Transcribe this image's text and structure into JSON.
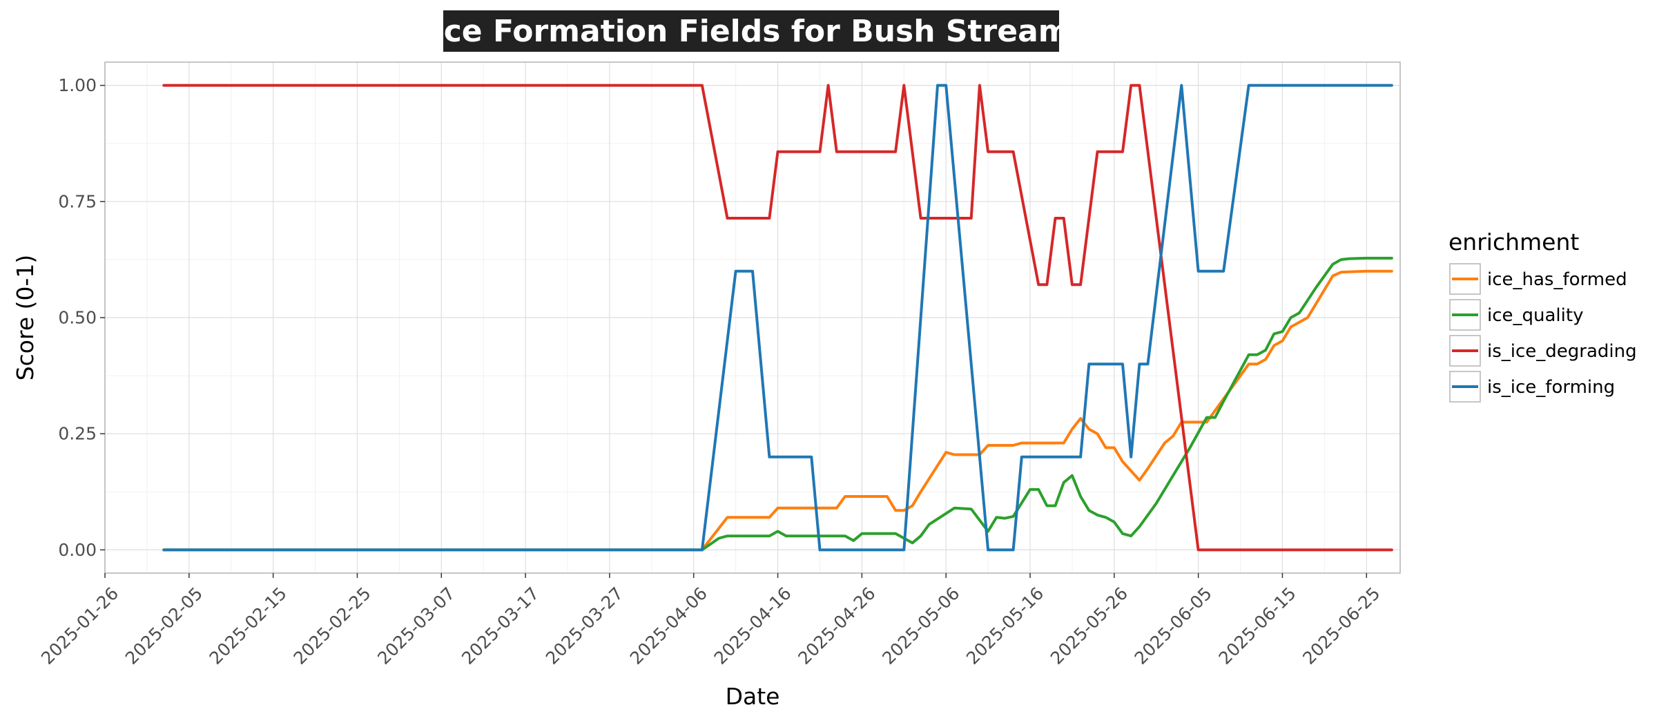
{
  "chart_data": {
    "type": "line",
    "title": "Ice Formation Fields for Bush Stream",
    "xlabel": "Date",
    "ylabel": "Score (0-1)",
    "xlim": [
      "2025-01-26",
      "2025-06-29"
    ],
    "ylim": [
      -0.05,
      1.05
    ],
    "x_ticks": [
      "2025-01-26",
      "2025-02-05",
      "2025-02-15",
      "2025-02-25",
      "2025-03-07",
      "2025-03-17",
      "2025-03-27",
      "2025-04-06",
      "2025-04-16",
      "2025-04-26",
      "2025-05-06",
      "2025-05-16",
      "2025-05-26",
      "2025-06-05",
      "2025-06-15",
      "2025-06-25"
    ],
    "y_ticks": [
      "0.00",
      "0.25",
      "0.50",
      "0.75",
      "1.00"
    ],
    "grid": true,
    "legend": {
      "title": "enrichment",
      "position": "right"
    },
    "series": [
      {
        "name": "ice_has_formed",
        "color": "#ff7f0e",
        "points": [
          [
            "2025-02-02",
            0
          ],
          [
            "2025-04-07",
            0
          ],
          [
            "2025-04-10",
            0.07
          ],
          [
            "2025-04-15",
            0.07
          ],
          [
            "2025-04-16",
            0.09
          ],
          [
            "2025-04-21",
            0.09
          ],
          [
            "2025-04-23",
            0.09
          ],
          [
            "2025-04-24",
            0.115
          ],
          [
            "2025-04-27",
            0.115
          ],
          [
            "2025-04-29",
            0.115
          ],
          [
            "2025-04-30",
            0.085
          ],
          [
            "2025-05-01",
            0.085
          ],
          [
            "2025-05-02",
            0.095
          ],
          [
            "2025-05-03",
            0.125
          ],
          [
            "2025-05-06",
            0.21
          ],
          [
            "2025-05-07",
            0.205
          ],
          [
            "2025-05-10",
            0.205
          ],
          [
            "2025-05-11",
            0.225
          ],
          [
            "2025-05-14",
            0.225
          ],
          [
            "2025-05-15",
            0.23
          ],
          [
            "2025-05-20",
            0.23
          ],
          [
            "2025-05-21",
            0.26
          ],
          [
            "2025-05-22",
            0.283
          ],
          [
            "2025-05-23",
            0.26
          ],
          [
            "2025-05-24",
            0.25
          ],
          [
            "2025-05-25",
            0.22
          ],
          [
            "2025-05-26",
            0.22
          ],
          [
            "2025-05-27",
            0.19
          ],
          [
            "2025-05-29",
            0.15
          ],
          [
            "2025-05-30",
            0.175
          ],
          [
            "2025-06-01",
            0.23
          ],
          [
            "2025-06-02",
            0.245
          ],
          [
            "2025-06-03",
            0.275
          ],
          [
            "2025-06-06",
            0.275
          ],
          [
            "2025-06-07",
            0.3
          ],
          [
            "2025-06-09",
            0.35
          ],
          [
            "2025-06-11",
            0.4
          ],
          [
            "2025-06-12",
            0.4
          ],
          [
            "2025-06-13",
            0.41
          ],
          [
            "2025-06-14",
            0.44
          ],
          [
            "2025-06-15",
            0.45
          ],
          [
            "2025-06-16",
            0.48
          ],
          [
            "2025-06-17",
            0.49
          ],
          [
            "2025-06-18",
            0.5
          ],
          [
            "2025-06-21",
            0.59
          ],
          [
            "2025-06-22",
            0.598
          ],
          [
            "2025-06-25",
            0.6
          ],
          [
            "2025-06-28",
            0.6
          ]
        ]
      },
      {
        "name": "ice_quality",
        "color": "#2ca02c",
        "points": [
          [
            "2025-02-02",
            0
          ],
          [
            "2025-04-07",
            0
          ],
          [
            "2025-04-09",
            0.025
          ],
          [
            "2025-04-10",
            0.03
          ],
          [
            "2025-04-15",
            0.03
          ],
          [
            "2025-04-16",
            0.04
          ],
          [
            "2025-04-17",
            0.03
          ],
          [
            "2025-04-24",
            0.03
          ],
          [
            "2025-04-25",
            0.02
          ],
          [
            "2025-04-26",
            0.035
          ],
          [
            "2025-04-27",
            0.035
          ],
          [
            "2025-04-30",
            0.035
          ],
          [
            "2025-05-01",
            0.025
          ],
          [
            "2025-05-02",
            0.015
          ],
          [
            "2025-05-03",
            0.03
          ],
          [
            "2025-05-04",
            0.055
          ],
          [
            "2025-05-07",
            0.09
          ],
          [
            "2025-05-09",
            0.088
          ],
          [
            "2025-05-11",
            0.04
          ],
          [
            "2025-05-12",
            0.07
          ],
          [
            "2025-05-13",
            0.068
          ],
          [
            "2025-05-14",
            0.072
          ],
          [
            "2025-05-16",
            0.13
          ],
          [
            "2025-05-17",
            0.13
          ],
          [
            "2025-05-18",
            0.095
          ],
          [
            "2025-05-19",
            0.095
          ],
          [
            "2025-05-20",
            0.145
          ],
          [
            "2025-05-21",
            0.16
          ],
          [
            "2025-05-22",
            0.115
          ],
          [
            "2025-05-23",
            0.085
          ],
          [
            "2025-05-24",
            0.075
          ],
          [
            "2025-05-25",
            0.07
          ],
          [
            "2025-05-26",
            0.06
          ],
          [
            "2025-05-27",
            0.035
          ],
          [
            "2025-05-28",
            0.03
          ],
          [
            "2025-05-29",
            0.05
          ],
          [
            "2025-05-31",
            0.1
          ],
          [
            "2025-06-02",
            0.16
          ],
          [
            "2025-06-04",
            0.22
          ],
          [
            "2025-06-06",
            0.285
          ],
          [
            "2025-06-07",
            0.285
          ],
          [
            "2025-06-08",
            0.32
          ],
          [
            "2025-06-11",
            0.42
          ],
          [
            "2025-06-12",
            0.42
          ],
          [
            "2025-06-13",
            0.43
          ],
          [
            "2025-06-14",
            0.465
          ],
          [
            "2025-06-15",
            0.47
          ],
          [
            "2025-06-16",
            0.5
          ],
          [
            "2025-06-17",
            0.51
          ],
          [
            "2025-06-19",
            0.565
          ],
          [
            "2025-06-21",
            0.615
          ],
          [
            "2025-06-22",
            0.625
          ],
          [
            "2025-06-23",
            0.627
          ],
          [
            "2025-06-25",
            0.628
          ],
          [
            "2025-06-28",
            0.628
          ]
        ]
      },
      {
        "name": "is_ice_degrading",
        "color": "#d62728",
        "points": [
          [
            "2025-02-02",
            1
          ],
          [
            "2025-04-07",
            1
          ],
          [
            "2025-04-10",
            0.714
          ],
          [
            "2025-04-15",
            0.714
          ],
          [
            "2025-04-16",
            0.857
          ],
          [
            "2025-04-21",
            0.857
          ],
          [
            "2025-04-22",
            1
          ],
          [
            "2025-04-23",
            0.857
          ],
          [
            "2025-04-30",
            0.857
          ],
          [
            "2025-05-01",
            1
          ],
          [
            "2025-05-03",
            0.714
          ],
          [
            "2025-05-09",
            0.714
          ],
          [
            "2025-05-10",
            1
          ],
          [
            "2025-05-11",
            0.857
          ],
          [
            "2025-05-14",
            0.857
          ],
          [
            "2025-05-17",
            0.571
          ],
          [
            "2025-05-18",
            0.571
          ],
          [
            "2025-05-19",
            0.714
          ],
          [
            "2025-05-20",
            0.714
          ],
          [
            "2025-05-21",
            0.571
          ],
          [
            "2025-05-22",
            0.571
          ],
          [
            "2025-05-24",
            0.857
          ],
          [
            "2025-05-27",
            0.857
          ],
          [
            "2025-05-28",
            1
          ],
          [
            "2025-05-29",
            1
          ],
          [
            "2025-06-05",
            0
          ],
          [
            "2025-06-28",
            0
          ]
        ]
      },
      {
        "name": "is_ice_forming",
        "color": "#1f77b4",
        "points": [
          [
            "2025-02-02",
            0
          ],
          [
            "2025-04-07",
            0
          ],
          [
            "2025-04-11",
            0.6
          ],
          [
            "2025-04-13",
            0.6
          ],
          [
            "2025-04-15",
            0.2
          ],
          [
            "2025-04-20",
            0.2
          ],
          [
            "2025-04-21",
            0
          ],
          [
            "2025-05-01",
            0
          ],
          [
            "2025-05-05",
            1
          ],
          [
            "2025-05-06",
            1
          ],
          [
            "2025-05-11",
            0
          ],
          [
            "2025-05-14",
            0
          ],
          [
            "2025-05-15",
            0.2
          ],
          [
            "2025-05-22",
            0.2
          ],
          [
            "2025-05-23",
            0.4
          ],
          [
            "2025-05-27",
            0.4
          ],
          [
            "2025-05-28",
            0.2
          ],
          [
            "2025-05-29",
            0.4
          ],
          [
            "2025-05-30",
            0.4
          ],
          [
            "2025-06-03",
            1
          ],
          [
            "2025-06-05",
            0.6
          ],
          [
            "2025-06-08",
            0.6
          ],
          [
            "2025-06-11",
            1
          ],
          [
            "2025-06-28",
            1
          ]
        ]
      }
    ]
  }
}
